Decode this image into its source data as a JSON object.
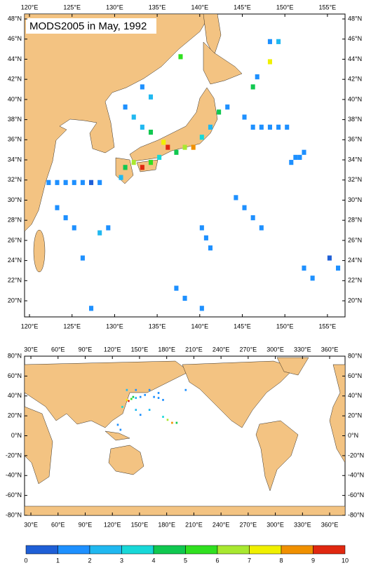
{
  "title": "MODS2005 in May, 1992",
  "map_top": {
    "xlim": [
      119.42,
      157.07
    ],
    "ylim": [
      18.4,
      48.49
    ],
    "xticks": [
      {
        "value": 120,
        "label": "120°E"
      },
      {
        "value": 125,
        "label": "125°E"
      },
      {
        "value": 130,
        "label": "130°E"
      },
      {
        "value": 135,
        "label": "135°E"
      },
      {
        "value": 140,
        "label": "140°E"
      },
      {
        "value": 145,
        "label": "145°E"
      },
      {
        "value": 150,
        "label": "150°E"
      },
      {
        "value": 155,
        "label": "155°E"
      }
    ],
    "yticks": [
      {
        "value": 20,
        "label": "20°N"
      },
      {
        "value": 22,
        "label": "22°N"
      },
      {
        "value": 24,
        "label": "24°N"
      },
      {
        "value": 26,
        "label": "26°N"
      },
      {
        "value": 28,
        "label": "28°N"
      },
      {
        "value": 30,
        "label": "30°N"
      },
      {
        "value": 32,
        "label": "32°N"
      },
      {
        "value": 34,
        "label": "34°N"
      },
      {
        "value": 36,
        "label": "36°N"
      },
      {
        "value": 38,
        "label": "38°N"
      },
      {
        "value": 40,
        "label": "40°N"
      },
      {
        "value": 42,
        "label": "42°N"
      },
      {
        "value": 44,
        "label": "44°N"
      },
      {
        "value": 46,
        "label": "46°N"
      },
      {
        "value": 48,
        "label": "48°N"
      }
    ],
    "cell": 0.5,
    "cells": [
      [
        122,
        31.5,
        1
      ],
      [
        123,
        31.5,
        1
      ],
      [
        124,
        31.5,
        1
      ],
      [
        125,
        31.5,
        1
      ],
      [
        126,
        31.5,
        1
      ],
      [
        127,
        31.5,
        0
      ],
      [
        128,
        31.5,
        1
      ],
      [
        130.5,
        32,
        2
      ],
      [
        131,
        33,
        4
      ],
      [
        132,
        33.5,
        6
      ],
      [
        133,
        33,
        9
      ],
      [
        134,
        33.5,
        5
      ],
      [
        135,
        34,
        3
      ],
      [
        135.5,
        35.5,
        7
      ],
      [
        136,
        35,
        9
      ],
      [
        137,
        34.5,
        4
      ],
      [
        138,
        35,
        6
      ],
      [
        139,
        35,
        8
      ],
      [
        140,
        36,
        3
      ],
      [
        141,
        37,
        2
      ],
      [
        142,
        38.5,
        4
      ],
      [
        143,
        39,
        1
      ],
      [
        145,
        38,
        1
      ],
      [
        146,
        37,
        1
      ],
      [
        147,
        37,
        1
      ],
      [
        148,
        37,
        1
      ],
      [
        149,
        37,
        1
      ],
      [
        150,
        37,
        1
      ],
      [
        151,
        34,
        1
      ],
      [
        151.5,
        34,
        1
      ],
      [
        152,
        34.5,
        1
      ],
      [
        150.5,
        33.5,
        1
      ],
      [
        152,
        23,
        1
      ],
      [
        153,
        22,
        1
      ],
      [
        155,
        24,
        0
      ],
      [
        156,
        23,
        1
      ],
      [
        140,
        27,
        1
      ],
      [
        140.5,
        26,
        1
      ],
      [
        141,
        25,
        1
      ],
      [
        137,
        21,
        1
      ],
      [
        138,
        20,
        1
      ],
      [
        140,
        19,
        1
      ],
      [
        127,
        19,
        1
      ],
      [
        126,
        24,
        1
      ],
      [
        128,
        26.5,
        2
      ],
      [
        129,
        27,
        1
      ],
      [
        123,
        29,
        1
      ],
      [
        124,
        28,
        1
      ],
      [
        125,
        27,
        1
      ],
      [
        133,
        41,
        1
      ],
      [
        134,
        40,
        2
      ],
      [
        137.5,
        44,
        5
      ],
      [
        146,
        41,
        4
      ],
      [
        146.5,
        42,
        1
      ],
      [
        148,
        43.5,
        7
      ],
      [
        148,
        45.5,
        1
      ],
      [
        149,
        45.5,
        2
      ],
      [
        144,
        30,
        1
      ],
      [
        145,
        29,
        1
      ],
      [
        146,
        28,
        1
      ],
      [
        147,
        27,
        1
      ],
      [
        131,
        39,
        1
      ],
      [
        132,
        38,
        2
      ],
      [
        133,
        37,
        2
      ],
      [
        134,
        36.5,
        4
      ]
    ]
  },
  "map_global": {
    "xlim": [
      23,
      377
    ],
    "ylim": [
      -80,
      80
    ],
    "xticks": [
      {
        "value": 30,
        "label": "30°E"
      },
      {
        "value": 60,
        "label": "60°E"
      },
      {
        "value": 90,
        "label": "90°E"
      },
      {
        "value": 120,
        "label": "120°E"
      },
      {
        "value": 150,
        "label": "150°E"
      },
      {
        "value": 180,
        "label": "180°E"
      },
      {
        "value": 210,
        "label": "210°E"
      },
      {
        "value": 240,
        "label": "240°E"
      },
      {
        "value": 270,
        "label": "270°E"
      },
      {
        "value": 300,
        "label": "300°E"
      },
      {
        "value": 330,
        "label": "330°E"
      },
      {
        "value": 360,
        "label": "360°E"
      }
    ],
    "yticks": [
      {
        "value": -80,
        "label": "-80°N"
      },
      {
        "value": -60,
        "label": "-60°N"
      },
      {
        "value": -40,
        "label": "-40°N"
      },
      {
        "value": -20,
        "label": "-20°N"
      },
      {
        "value": 0,
        "label": "0°N"
      },
      {
        "value": 20,
        "label": "20°N"
      },
      {
        "value": 40,
        "label": "40°N"
      },
      {
        "value": 60,
        "label": "60°N"
      },
      {
        "value": 80,
        "label": "80°N"
      }
    ],
    "cell": 2,
    "cells": [
      [
        135,
        35,
        7
      ],
      [
        137,
        34,
        9
      ],
      [
        140,
        36,
        5
      ],
      [
        142,
        38,
        4
      ],
      [
        145,
        37,
        2
      ],
      [
        150,
        38,
        1
      ],
      [
        155,
        40,
        1
      ],
      [
        160,
        45,
        1
      ],
      [
        165,
        38,
        1
      ],
      [
        170,
        37,
        1
      ],
      [
        175,
        35,
        1
      ],
      [
        180,
        15,
        6
      ],
      [
        185,
        12,
        8
      ],
      [
        190,
        12,
        4
      ],
      [
        175,
        18,
        3
      ],
      [
        160,
        25,
        2
      ],
      [
        150,
        20,
        1
      ],
      [
        145,
        25,
        2
      ],
      [
        130,
        28,
        3
      ],
      [
        125,
        10,
        1
      ],
      [
        128,
        5,
        1
      ],
      [
        135,
        45,
        2
      ],
      [
        145,
        45,
        1
      ],
      [
        170,
        42,
        1
      ],
      [
        200,
        45,
        1
      ]
    ]
  },
  "colorbar": {
    "levels": [
      0,
      1,
      2,
      3,
      4,
      5,
      6,
      7,
      8,
      9,
      10
    ],
    "colors": [
      "#1f5fd6",
      "#1e90ff",
      "#20b8f0",
      "#18d8d8",
      "#10c850",
      "#30e020",
      "#a8e830",
      "#f0f000",
      "#f09000",
      "#e02810"
    ]
  }
}
